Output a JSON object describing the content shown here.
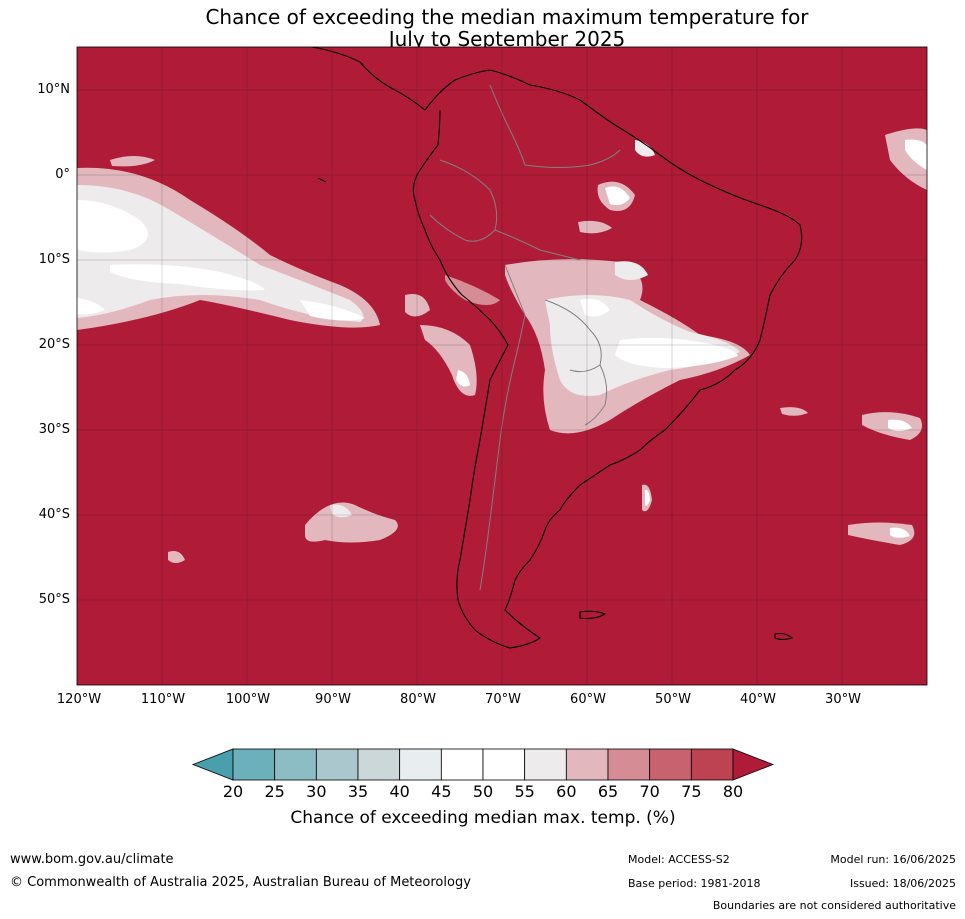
{
  "title": {
    "line1": "Chance of exceeding the median maximum temperature for",
    "line2": "July to September 2025"
  },
  "map": {
    "lat_labels": [
      "10°N",
      "0°",
      "10°S",
      "20°S",
      "30°S",
      "40°S",
      "50°S"
    ],
    "lon_labels": [
      "120°W",
      "110°W",
      "100°W",
      "90°W",
      "80°W",
      "70°W",
      "60°W",
      "50°W",
      "40°W",
      "30°W"
    ],
    "background_color": "#b01c38",
    "predominant_value_range": "above 80%"
  },
  "colorbar": {
    "ticks": [
      "20",
      "25",
      "30",
      "35",
      "40",
      "45",
      "50",
      "55",
      "60",
      "65",
      "70",
      "75",
      "80"
    ],
    "colors": [
      "#4a9fac",
      "#6cb0bb",
      "#8cbcc4",
      "#a9c7cd",
      "#cbd7d9",
      "#e8eef0",
      "#ffffff",
      "#ffffff",
      "#eeebec",
      "#e2b8be",
      "#d68c95",
      "#c8626e",
      "#bd4252",
      "#b01c38"
    ],
    "label": "Chance of exceeding median max. temp. (%)"
  },
  "footer": {
    "site": "www.bom.gov.au/climate",
    "copyright": "© Commonwealth of Australia 2025, Australian Bureau of Meteorology",
    "model": "Model: ACCESS-S2",
    "base_period": "Base period: 1981-2018",
    "model_run": "Model run: 16/06/2025",
    "issued": "Issued: 18/06/2025",
    "disclaimer": "Boundaries are not considered authoritative"
  }
}
